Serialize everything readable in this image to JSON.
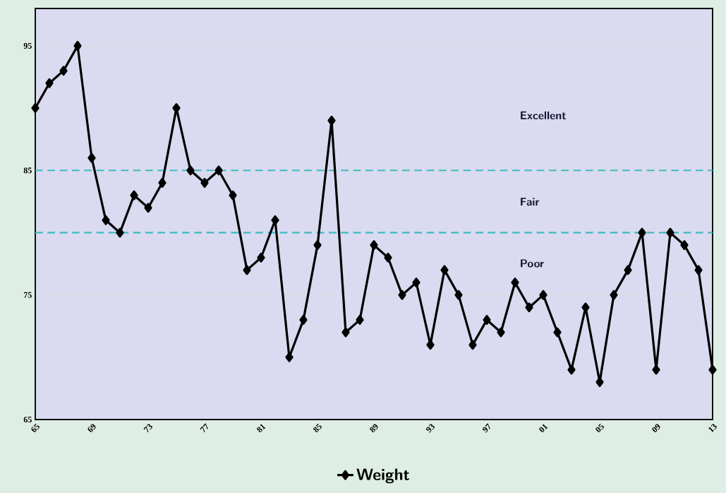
{
  "chart_data": {
    "type": "line",
    "x": [
      1965,
      1966,
      1967,
      1968,
      1969,
      1970,
      1971,
      1972,
      1973,
      1974,
      1975,
      1976,
      1977,
      1978,
      1979,
      1980,
      1981,
      1982,
      1983,
      1984,
      1985,
      1986,
      1987,
      1988,
      1989,
      1990,
      1991,
      1992,
      1993,
      1994,
      1995,
      1996,
      1997,
      1998,
      1999,
      2000,
      2001,
      2002,
      2003,
      2004,
      2005,
      2006,
      2007,
      2008,
      2009,
      2010,
      2011,
      2012,
      2013
    ],
    "series": [
      {
        "name": "Weight",
        "color": "#000000",
        "values": [
          90,
          92,
          93,
          95,
          86,
          81,
          80,
          83,
          82,
          84,
          90,
          85,
          84,
          85,
          83,
          77,
          78,
          81,
          70,
          73,
          79,
          89,
          72,
          73,
          79,
          78,
          75,
          76,
          71,
          77,
          75,
          71,
          73,
          72,
          76,
          74,
          75,
          72,
          69,
          74,
          68,
          75,
          77,
          80,
          69,
          80,
          79,
          77,
          69
        ]
      }
    ],
    "xlim": [
      1965,
      2013
    ],
    "xticks": [
      {
        "value": 1965,
        "label": "65"
      },
      {
        "value": 1969,
        "label": "69"
      },
      {
        "value": 1973,
        "label": "73"
      },
      {
        "value": 1977,
        "label": "77"
      },
      {
        "value": 1981,
        "label": "81"
      },
      {
        "value": 1985,
        "label": "85"
      },
      {
        "value": 1989,
        "label": "89"
      },
      {
        "value": 1993,
        "label": "93"
      },
      {
        "value": 1997,
        "label": "97"
      },
      {
        "value": 2001,
        "label": "01"
      },
      {
        "value": 2005,
        "label": "05"
      },
      {
        "value": 2009,
        "label": "09"
      },
      {
        "value": 2013,
        "label": "13"
      }
    ],
    "ylim": [
      65,
      98
    ],
    "yticks": [
      65,
      75,
      85,
      95
    ],
    "grid": "y",
    "legend": "bottom",
    "marker": "diamond",
    "line_style": "solid",
    "ref_lines": [
      {
        "axis": "y",
        "value": 85,
        "color": "#3cbcc0",
        "line_style": "dashed"
      },
      {
        "axis": "y",
        "value": 80,
        "color": "#3cbcc0",
        "line_style": "dashed"
      }
    ],
    "annotations": [
      "Excellent",
      "Fair",
      "Poor"
    ]
  }
}
